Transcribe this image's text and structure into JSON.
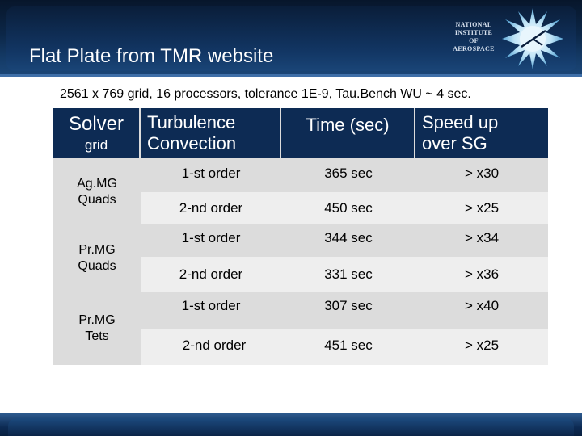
{
  "slide": {
    "title": "Flat Plate from TMR website",
    "logo": [
      "NATIONAL",
      "INSTITUTE OF",
      "AEROSPACE"
    ],
    "subtitle": "2561 x 769 grid, 16 processors, tolerance 1E-9, Tau.Bench WU ~ 4 sec."
  },
  "table": {
    "header": {
      "solver": "Solver",
      "grid": "grid",
      "turbulence": "Turbulence",
      "convection": "Convection",
      "time": "Time (sec)",
      "speed1": "Speed up",
      "speed2": "over SG"
    },
    "groups": [
      {
        "line1": "Ag.MG",
        "line2": "Quads"
      },
      {
        "line1": "Pr.MG",
        "line2": "Quads"
      },
      {
        "line1": "Pr.MG",
        "line2": "Tets"
      }
    ],
    "rows": [
      {
        "order": "1-st order",
        "time": "365 sec",
        "speedup": "> x30"
      },
      {
        "order": "2-nd order",
        "time": "450 sec",
        "speedup": "> x25"
      },
      {
        "order": "1-st order",
        "time": "344 sec",
        "speedup": "> x34"
      },
      {
        "order": "2-nd order",
        "time": "331 sec",
        "speedup": "> x36"
      },
      {
        "order": "1-st order",
        "time": "307 sec",
        "speedup": "> x40"
      },
      {
        "order": "2-nd order",
        "time": "451 sec",
        "speedup": "> x25"
      }
    ]
  },
  "colors": {
    "header_bg": "#0d2b54",
    "row_light": "#eeeeee",
    "row_dark": "#dcdcdc",
    "title_text": "#ffffff"
  }
}
